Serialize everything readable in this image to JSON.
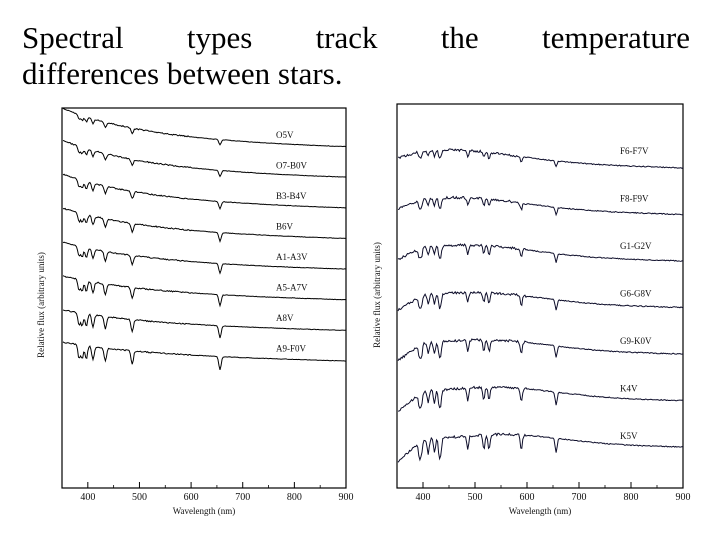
{
  "slide": {
    "title_line1": "Spectral types track the temperature",
    "title_line2": "differences between stars."
  },
  "chart_data": [
    {
      "type": "line",
      "xlabel": "Wavelength (nm)",
      "ylabel": "Relative flux (arbitrary units)",
      "xlim": [
        350,
        900
      ],
      "xticks": [
        400,
        500,
        600,
        700,
        800,
        900
      ],
      "series": [
        {
          "name": "O5V",
          "slope": 1.0
        },
        {
          "name": "O7-B0V",
          "slope": 0.95
        },
        {
          "name": "B3-B4V",
          "slope": 0.85
        },
        {
          "name": "B6V",
          "slope": 0.75
        },
        {
          "name": "A1-A3V",
          "slope": 0.65
        },
        {
          "name": "A5-A7V",
          "slope": 0.55
        },
        {
          "name": "A8V",
          "slope": 0.45
        },
        {
          "name": "A9-F0V",
          "slope": 0.4
        }
      ]
    },
    {
      "type": "line",
      "xlabel": "Wavelength (nm)",
      "ylabel": "Relative flux (arbitrary units)",
      "xlim": [
        350,
        900
      ],
      "xticks": [
        400,
        500,
        600,
        700,
        800,
        900
      ],
      "series": [
        {
          "name": "F6-F7V",
          "slope": 0.3
        },
        {
          "name": "F8-F9V",
          "slope": 0.25
        },
        {
          "name": "G1-G2V",
          "slope": 0.2
        },
        {
          "name": "G6-G8V",
          "slope": 0.15
        },
        {
          "name": "G9-K0V",
          "slope": 0.1
        },
        {
          "name": "K4V",
          "slope": 0.05
        },
        {
          "name": "K5V",
          "slope": 0.0
        }
      ]
    }
  ]
}
